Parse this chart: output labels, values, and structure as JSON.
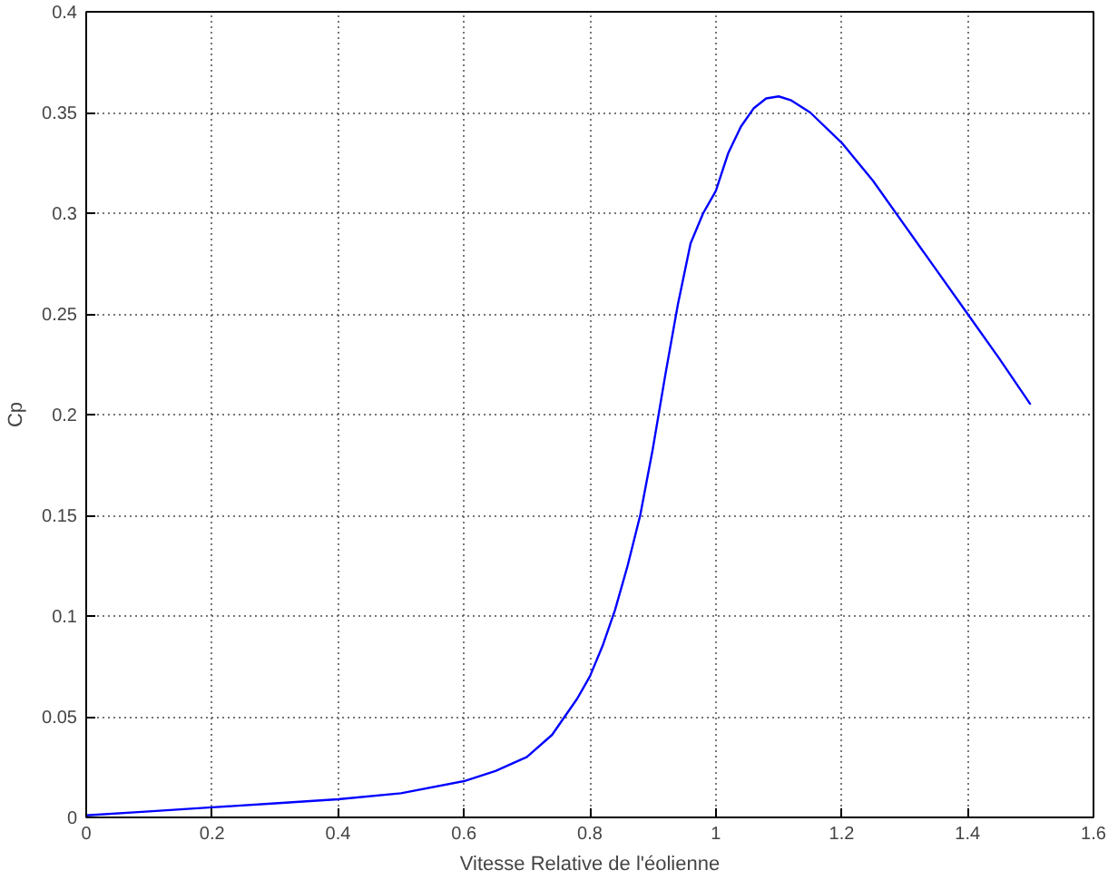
{
  "chart_data": {
    "type": "line",
    "xlabel": "Vitesse Relative de l'éolienne",
    "ylabel": "Cp",
    "x": [
      0,
      0.1,
      0.2,
      0.3,
      0.4,
      0.5,
      0.6,
      0.65,
      0.7,
      0.74,
      0.76,
      0.78,
      0.8,
      0.82,
      0.84,
      0.86,
      0.88,
      0.9,
      0.92,
      0.94,
      0.96,
      0.98,
      1.0,
      1.02,
      1.04,
      1.06,
      1.08,
      1.1,
      1.12,
      1.15,
      1.2,
      1.25,
      1.3,
      1.35,
      1.4,
      1.45,
      1.5
    ],
    "series": [
      {
        "color": "#0000ff",
        "values": [
          0.001,
          0.003,
          0.005,
          0.007,
          0.009,
          0.012,
          0.018,
          0.023,
          0.03,
          0.041,
          0.05,
          0.059,
          0.07,
          0.085,
          0.103,
          0.125,
          0.15,
          0.183,
          0.22,
          0.255,
          0.285,
          0.3,
          0.311,
          0.33,
          0.343,
          0.352,
          0.357,
          0.358,
          0.356,
          0.35,
          0.335,
          0.316,
          0.294,
          0.272,
          0.25,
          0.228,
          0.205
        ]
      }
    ],
    "xlim": [
      0,
      1.6
    ],
    "xticks": [
      0,
      0.2,
      0.4,
      0.6,
      0.8,
      1,
      1.2,
      1.4,
      1.6
    ],
    "ylim": [
      0,
      0.4
    ],
    "yticks": [
      0,
      0.05,
      0.1,
      0.15,
      0.2,
      0.25,
      0.3,
      0.35,
      0.4
    ],
    "grid": true,
    "line_style": "solid"
  }
}
